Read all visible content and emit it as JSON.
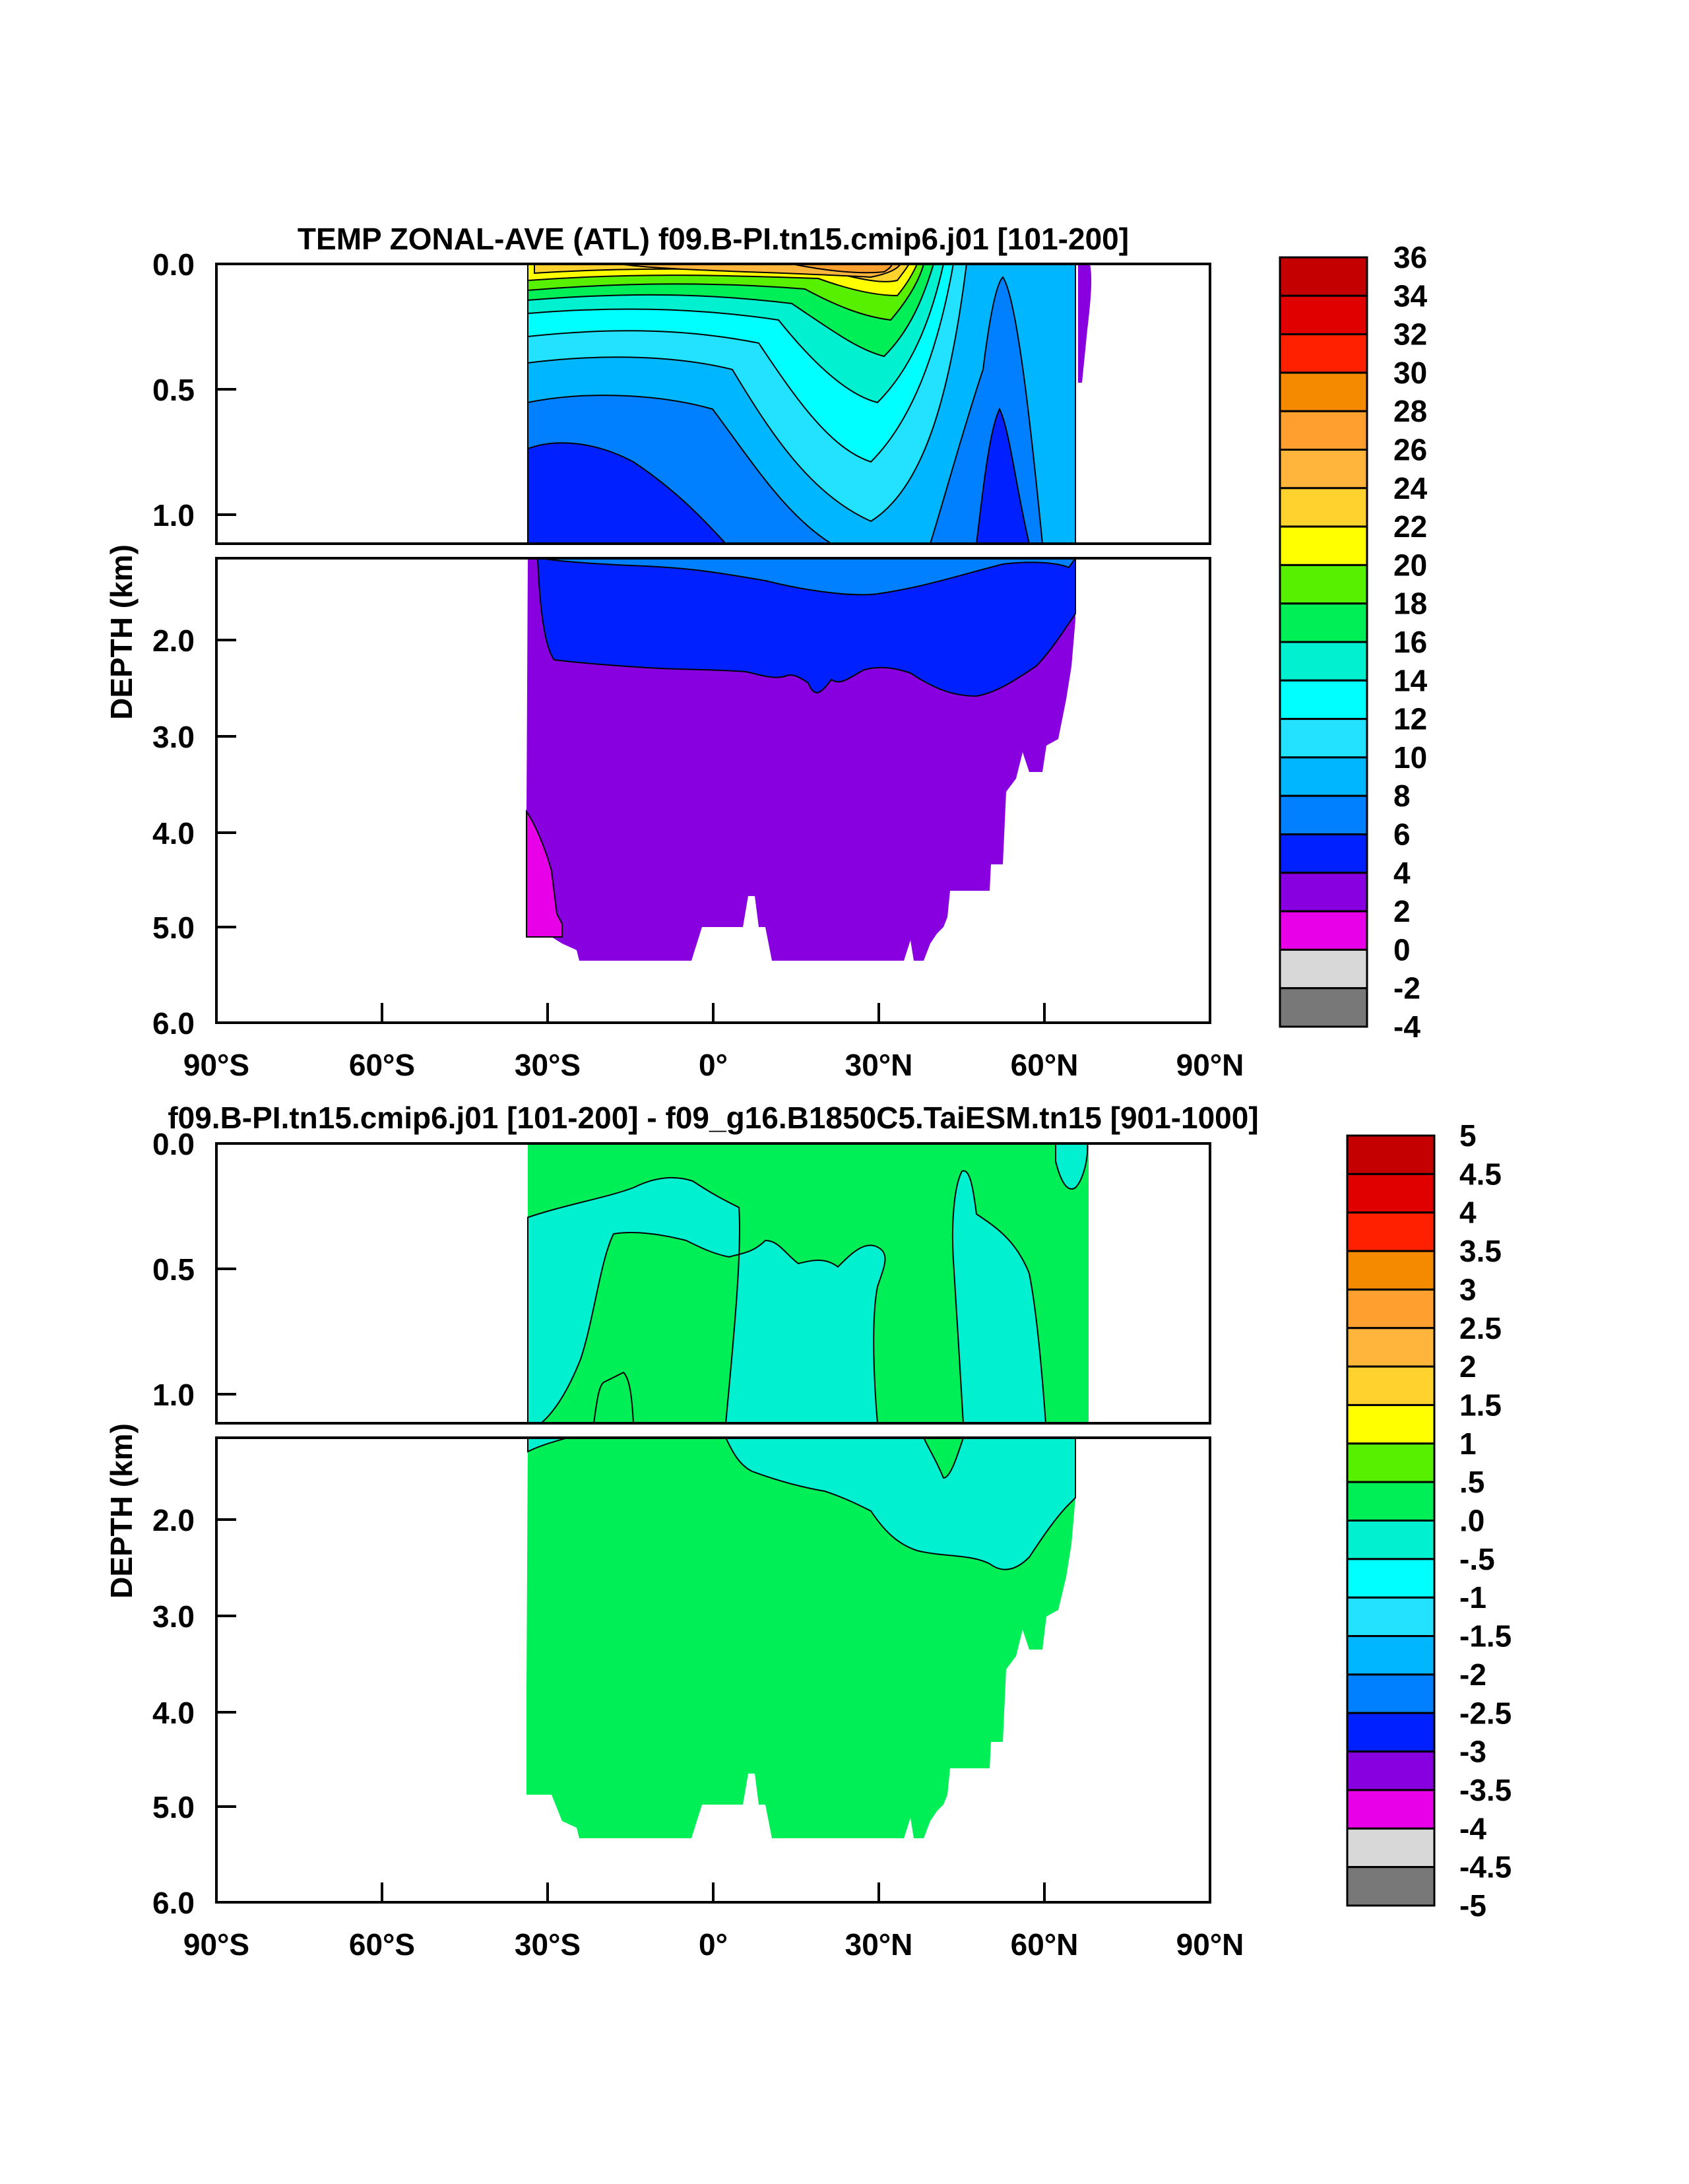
{
  "chart_data": [
    {
      "type": "heatmap",
      "title": "TEMP ZONAL-AVE (ATL) f09.B-PI.tn15.cmip6.j01 [101-200]",
      "ylabel": "DEPTH (km)",
      "x_ticks": [
        "90°S",
        "60°S",
        "30°S",
        "0°",
        "30°N",
        "60°N",
        "90°N"
      ],
      "upper_y_ticks": [
        "0.0",
        "0.5",
        "1.0"
      ],
      "lower_y_ticks": [
        "2.0",
        "3.0",
        "4.0",
        "5.0",
        "6.0"
      ],
      "xlim": [
        -90,
        90
      ],
      "ylim_km": [
        0,
        6
      ],
      "colorbar_labels": [
        "36",
        "34",
        "32",
        "30",
        "28",
        "26",
        "24",
        "22",
        "20",
        "18",
        "16",
        "14",
        "12",
        "10",
        "8",
        "6",
        "4",
        "2",
        "0",
        "-2",
        "-4"
      ],
      "colorbar_colors": [
        "#c40000",
        "#e00000",
        "#ff2000",
        "#f58a00",
        "#ff9f30",
        "#ffb43c",
        "#ffd22e",
        "#ffff00",
        "#56f000",
        "#00ee56",
        "#00f0d0",
        "#00ffff",
        "#22e2ff",
        "#00b6ff",
        "#0080ff",
        "#0020ff",
        "#8800e0",
        "#e800e8",
        "#d8d8d8",
        "#787878"
      ]
    },
    {
      "type": "heatmap",
      "title": "f09.B-PI.tn15.cmip6.j01 [101-200] - f09_g16.B1850C5.TaiESM.tn15 [901-1000]",
      "ylabel": "DEPTH (km)",
      "x_ticks": [
        "90°S",
        "60°S",
        "30°S",
        "0°",
        "30°N",
        "60°N",
        "90°N"
      ],
      "upper_y_ticks": [
        "0.0",
        "0.5",
        "1.0"
      ],
      "lower_y_ticks": [
        "2.0",
        "3.0",
        "4.0",
        "5.0",
        "6.0"
      ],
      "xlim": [
        -90,
        90
      ],
      "ylim_km": [
        0,
        6
      ],
      "colorbar_labels": [
        "5",
        "4.5",
        "4",
        "3.5",
        "3",
        "2.5",
        "2",
        "1.5",
        "1",
        ".5",
        ".0",
        "-.5",
        "-1",
        "-1.5",
        "-2",
        "-2.5",
        "-3",
        "-3.5",
        "-4",
        "-4.5",
        "-5"
      ],
      "colorbar_colors": [
        "#c40000",
        "#e00000",
        "#ff2000",
        "#f58a00",
        "#ff9f30",
        "#ffb43c",
        "#ffd22e",
        "#ffff00",
        "#56f000",
        "#00ee56",
        "#00f0d0",
        "#00ffff",
        "#22e2ff",
        "#00b6ff",
        "#0080ff",
        "#0020ff",
        "#8800e0",
        "#e800e8",
        "#d8d8d8",
        "#787878"
      ]
    }
  ]
}
